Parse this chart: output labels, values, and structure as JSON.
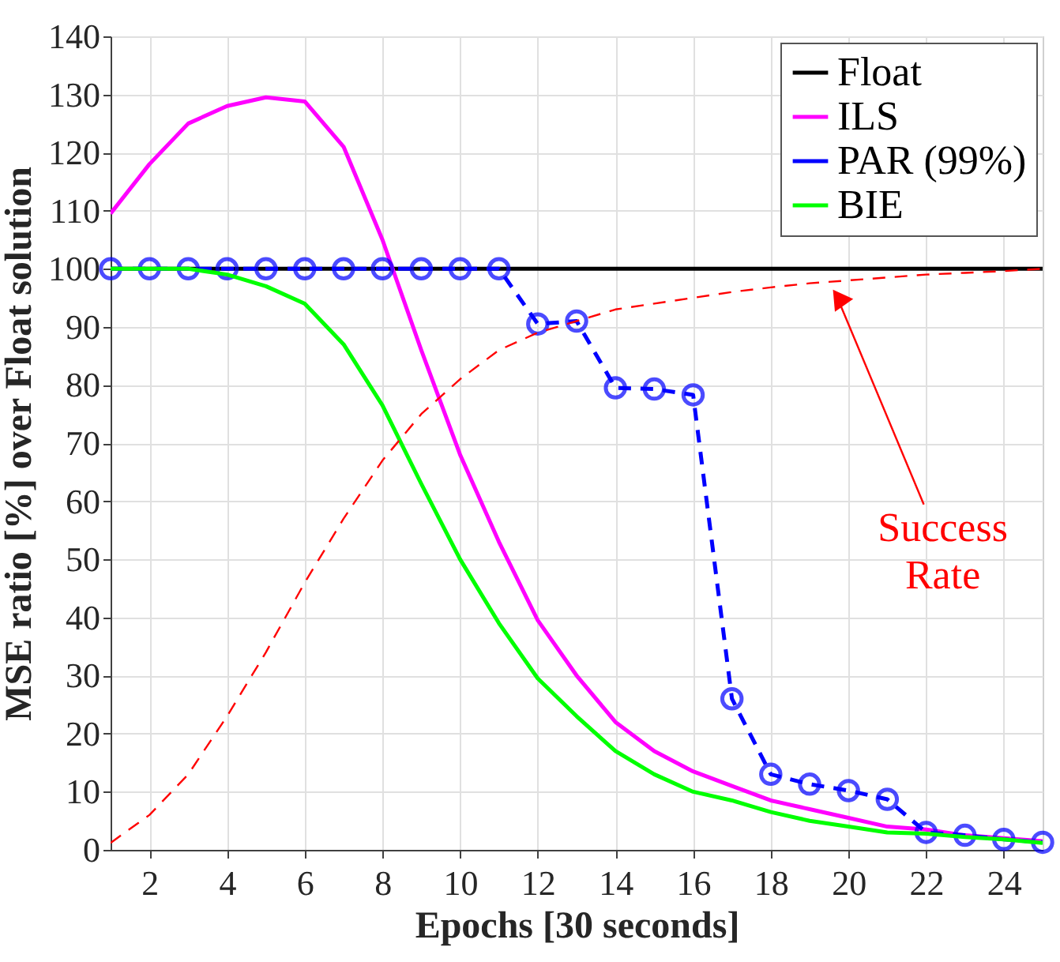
{
  "chart_data": {
    "type": "line",
    "xlabel": "Epochs [30 seconds]",
    "ylabel": "MSE ratio [%] over Float solution",
    "x": [
      1,
      2,
      3,
      4,
      5,
      6,
      7,
      8,
      9,
      10,
      11,
      12,
      13,
      14,
      15,
      16,
      17,
      18,
      19,
      20,
      21,
      22,
      23,
      24,
      25
    ],
    "series": [
      {
        "name": "Float",
        "color": "#000000",
        "line_style": "solid",
        "values": [
          100,
          100,
          100,
          100,
          100,
          100,
          100,
          100,
          100,
          100,
          100,
          100,
          100,
          100,
          100,
          100,
          100,
          100,
          100,
          100,
          100,
          100,
          100,
          100,
          100
        ]
      },
      {
        "name": "ILS",
        "color": "#ff00ff",
        "line_style": "solid",
        "values": [
          109.5,
          118,
          125,
          128,
          129.5,
          128.8,
          121,
          105,
          86,
          68,
          53,
          39.5,
          30,
          22,
          17,
          13.5,
          11,
          8.5,
          7,
          5.5,
          4,
          3.5,
          2.5,
          2,
          1.5
        ]
      },
      {
        "name": "PAR (99%)",
        "color": "#0000ff",
        "line_style": "dashed",
        "marker": "circle",
        "values": [
          100,
          100,
          100,
          100,
          100,
          100,
          100,
          100,
          100,
          100,
          100,
          90.5,
          91,
          79.5,
          79.3,
          78.3,
          26,
          13,
          11.3,
          10.2,
          8.7,
          3,
          2.5,
          1.8,
          1.3
        ]
      },
      {
        "name": "BIE",
        "color": "#00ff00",
        "line_style": "solid",
        "values": [
          100,
          100,
          100,
          99,
          97,
          94,
          87,
          76.5,
          63,
          50,
          39,
          29.5,
          23,
          17,
          13,
          10,
          8.5,
          6.5,
          5,
          4,
          3,
          2.8,
          2.2,
          1.8,
          1.2
        ]
      },
      {
        "color": "#ff0000",
        "line_style": "dashed",
        "values": [
          1.2,
          6,
          13,
          23,
          34,
          46,
          57,
          67,
          75,
          81,
          86,
          89,
          91,
          93,
          94,
          95,
          96,
          96.8,
          97.5,
          98,
          98.5,
          99,
          99.3,
          99.6,
          100
        ]
      }
    ],
    "annotations": [
      {
        "text": "Success Rate",
        "x": 19.5,
        "y": 97.5
      }
    ],
    "xlim": [
      1,
      25
    ],
    "xticks": [
      2,
      4,
      6,
      8,
      10,
      12,
      14,
      16,
      18,
      20,
      22,
      24
    ],
    "ylim": [
      0,
      140
    ],
    "yticks": [
      0,
      10,
      20,
      30,
      40,
      50,
      60,
      70,
      80,
      90,
      100,
      110,
      120,
      130,
      140
    ],
    "grid": true,
    "legend": "top right"
  }
}
